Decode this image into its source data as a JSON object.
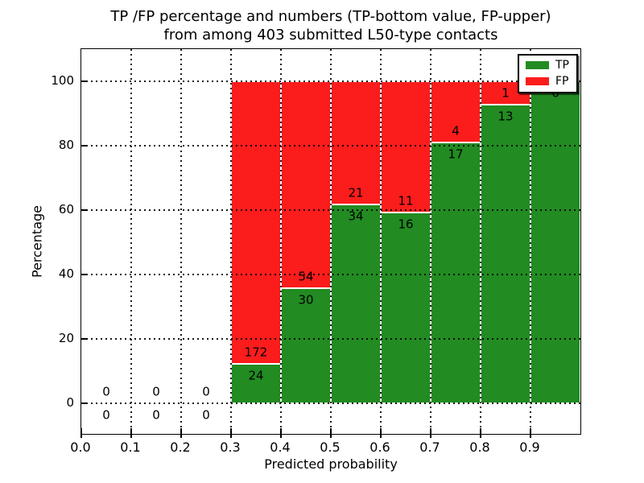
{
  "title": {
    "line1": "TP /FP percentage and numbers (TP-bottom value, FP-upper)",
    "line2": "from among 403 submitted L50-type contacts"
  },
  "axes": {
    "ylabel": "Percentage",
    "xlabel": "Predicted probability",
    "yticks": [
      "0",
      "20",
      "40",
      "60",
      "80",
      "100"
    ],
    "xticks": [
      "0.0",
      "0.1",
      "0.2",
      "0.3",
      "0.4",
      "0.5",
      "0.6",
      "0.7",
      "0.8",
      "0.9"
    ]
  },
  "legend": {
    "items": [
      {
        "label": "TP",
        "color": "#228b22"
      },
      {
        "label": "FP",
        "color": "#fb1c1c"
      }
    ]
  },
  "chart_data": {
    "type": "bar",
    "stacked": true,
    "normalized_to_percent": true,
    "title": "TP /FP percentage and numbers (TP-bottom value, FP-upper) from among 403 submitted L50-type contacts",
    "xlabel": "Predicted probability",
    "ylabel": "Percentage",
    "xlim": [
      0.0,
      1.0
    ],
    "ylim": [
      -10,
      110
    ],
    "grid": "dotted both axes",
    "legend_position": "upper right",
    "total_contacts": 403,
    "bin_width": 0.1,
    "bin_starts": [
      0.0,
      0.1,
      0.2,
      0.3,
      0.4,
      0.5,
      0.6,
      0.7,
      0.8,
      0.9
    ],
    "series": [
      {
        "name": "TP",
        "color": "#228b22",
        "counts": [
          0,
          0,
          0,
          24,
          30,
          34,
          16,
          17,
          13,
          6
        ]
      },
      {
        "name": "FP",
        "color": "#fb1c1c",
        "counts": [
          0,
          0,
          0,
          172,
          54,
          21,
          11,
          4,
          1,
          0
        ]
      }
    ],
    "tp_percent_by_bin": [
      null,
      null,
      null,
      12.2,
      35.7,
      61.8,
      59.3,
      81.0,
      92.9,
      100.0
    ]
  }
}
